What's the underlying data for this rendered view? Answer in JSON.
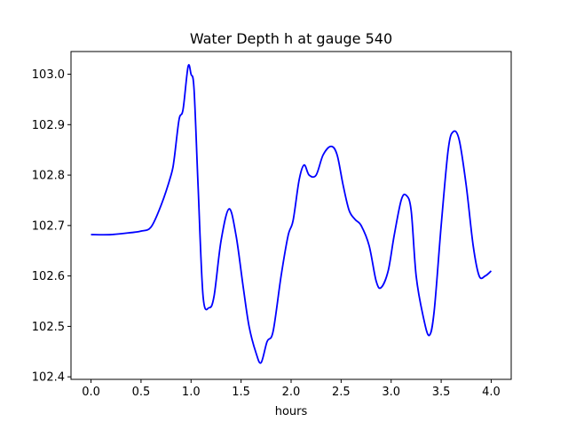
{
  "chart_data": {
    "type": "line",
    "title": "Water Depth h at gauge 540",
    "xlabel": "hours",
    "ylabel": "",
    "xlim": [
      -0.2,
      4.2
    ],
    "ylim": [
      102.395,
      103.045
    ],
    "x_ticks": [
      0.0,
      0.5,
      1.0,
      1.5,
      2.0,
      2.5,
      3.0,
      3.5,
      4.0
    ],
    "x_tick_labels": [
      "0.0",
      "0.5",
      "1.0",
      "1.5",
      "2.0",
      "2.5",
      "3.0",
      "3.5",
      "4.0"
    ],
    "y_ticks": [
      102.4,
      102.5,
      102.6,
      102.7,
      102.8,
      102.9,
      103.0
    ],
    "y_tick_labels": [
      "102.4",
      "102.5",
      "102.6",
      "102.7",
      "102.8",
      "102.9",
      "103.0"
    ],
    "grid": false,
    "legend": "none",
    "series": [
      {
        "color": "#0000ff",
        "points": [
          [
            0.0,
            102.682
          ],
          [
            0.2,
            102.682
          ],
          [
            0.4,
            102.686
          ],
          [
            0.5,
            102.689
          ],
          [
            0.6,
            102.697
          ],
          [
            0.7,
            102.74
          ],
          [
            0.8,
            102.8
          ],
          [
            0.83,
            102.83
          ],
          [
            0.88,
            102.91
          ],
          [
            0.92,
            102.93
          ],
          [
            0.97,
            103.015
          ],
          [
            1.0,
            103.0
          ],
          [
            1.03,
            102.97
          ],
          [
            1.07,
            102.78
          ],
          [
            1.12,
            102.56
          ],
          [
            1.18,
            102.537
          ],
          [
            1.23,
            102.56
          ],
          [
            1.3,
            102.67
          ],
          [
            1.38,
            102.733
          ],
          [
            1.45,
            102.68
          ],
          [
            1.52,
            102.58
          ],
          [
            1.58,
            102.5
          ],
          [
            1.65,
            102.447
          ],
          [
            1.7,
            102.428
          ],
          [
            1.76,
            102.47
          ],
          [
            1.82,
            102.49
          ],
          [
            1.9,
            102.6
          ],
          [
            1.97,
            102.68
          ],
          [
            2.02,
            102.71
          ],
          [
            2.08,
            102.79
          ],
          [
            2.13,
            102.82
          ],
          [
            2.18,
            102.8
          ],
          [
            2.25,
            102.8
          ],
          [
            2.32,
            102.84
          ],
          [
            2.4,
            102.857
          ],
          [
            2.46,
            102.84
          ],
          [
            2.52,
            102.78
          ],
          [
            2.58,
            102.73
          ],
          [
            2.64,
            102.712
          ],
          [
            2.7,
            102.7
          ],
          [
            2.78,
            102.66
          ],
          [
            2.85,
            102.59
          ],
          [
            2.9,
            102.577
          ],
          [
            2.97,
            102.61
          ],
          [
            3.03,
            102.68
          ],
          [
            3.1,
            102.75
          ],
          [
            3.15,
            102.76
          ],
          [
            3.2,
            102.73
          ],
          [
            3.25,
            102.6
          ],
          [
            3.32,
            102.52
          ],
          [
            3.38,
            102.482
          ],
          [
            3.43,
            102.53
          ],
          [
            3.5,
            102.7
          ],
          [
            3.57,
            102.85
          ],
          [
            3.62,
            102.886
          ],
          [
            3.68,
            102.87
          ],
          [
            3.75,
            102.78
          ],
          [
            3.82,
            102.66
          ],
          [
            3.88,
            102.6
          ],
          [
            3.94,
            102.6
          ],
          [
            4.0,
            102.61
          ]
        ]
      }
    ]
  }
}
